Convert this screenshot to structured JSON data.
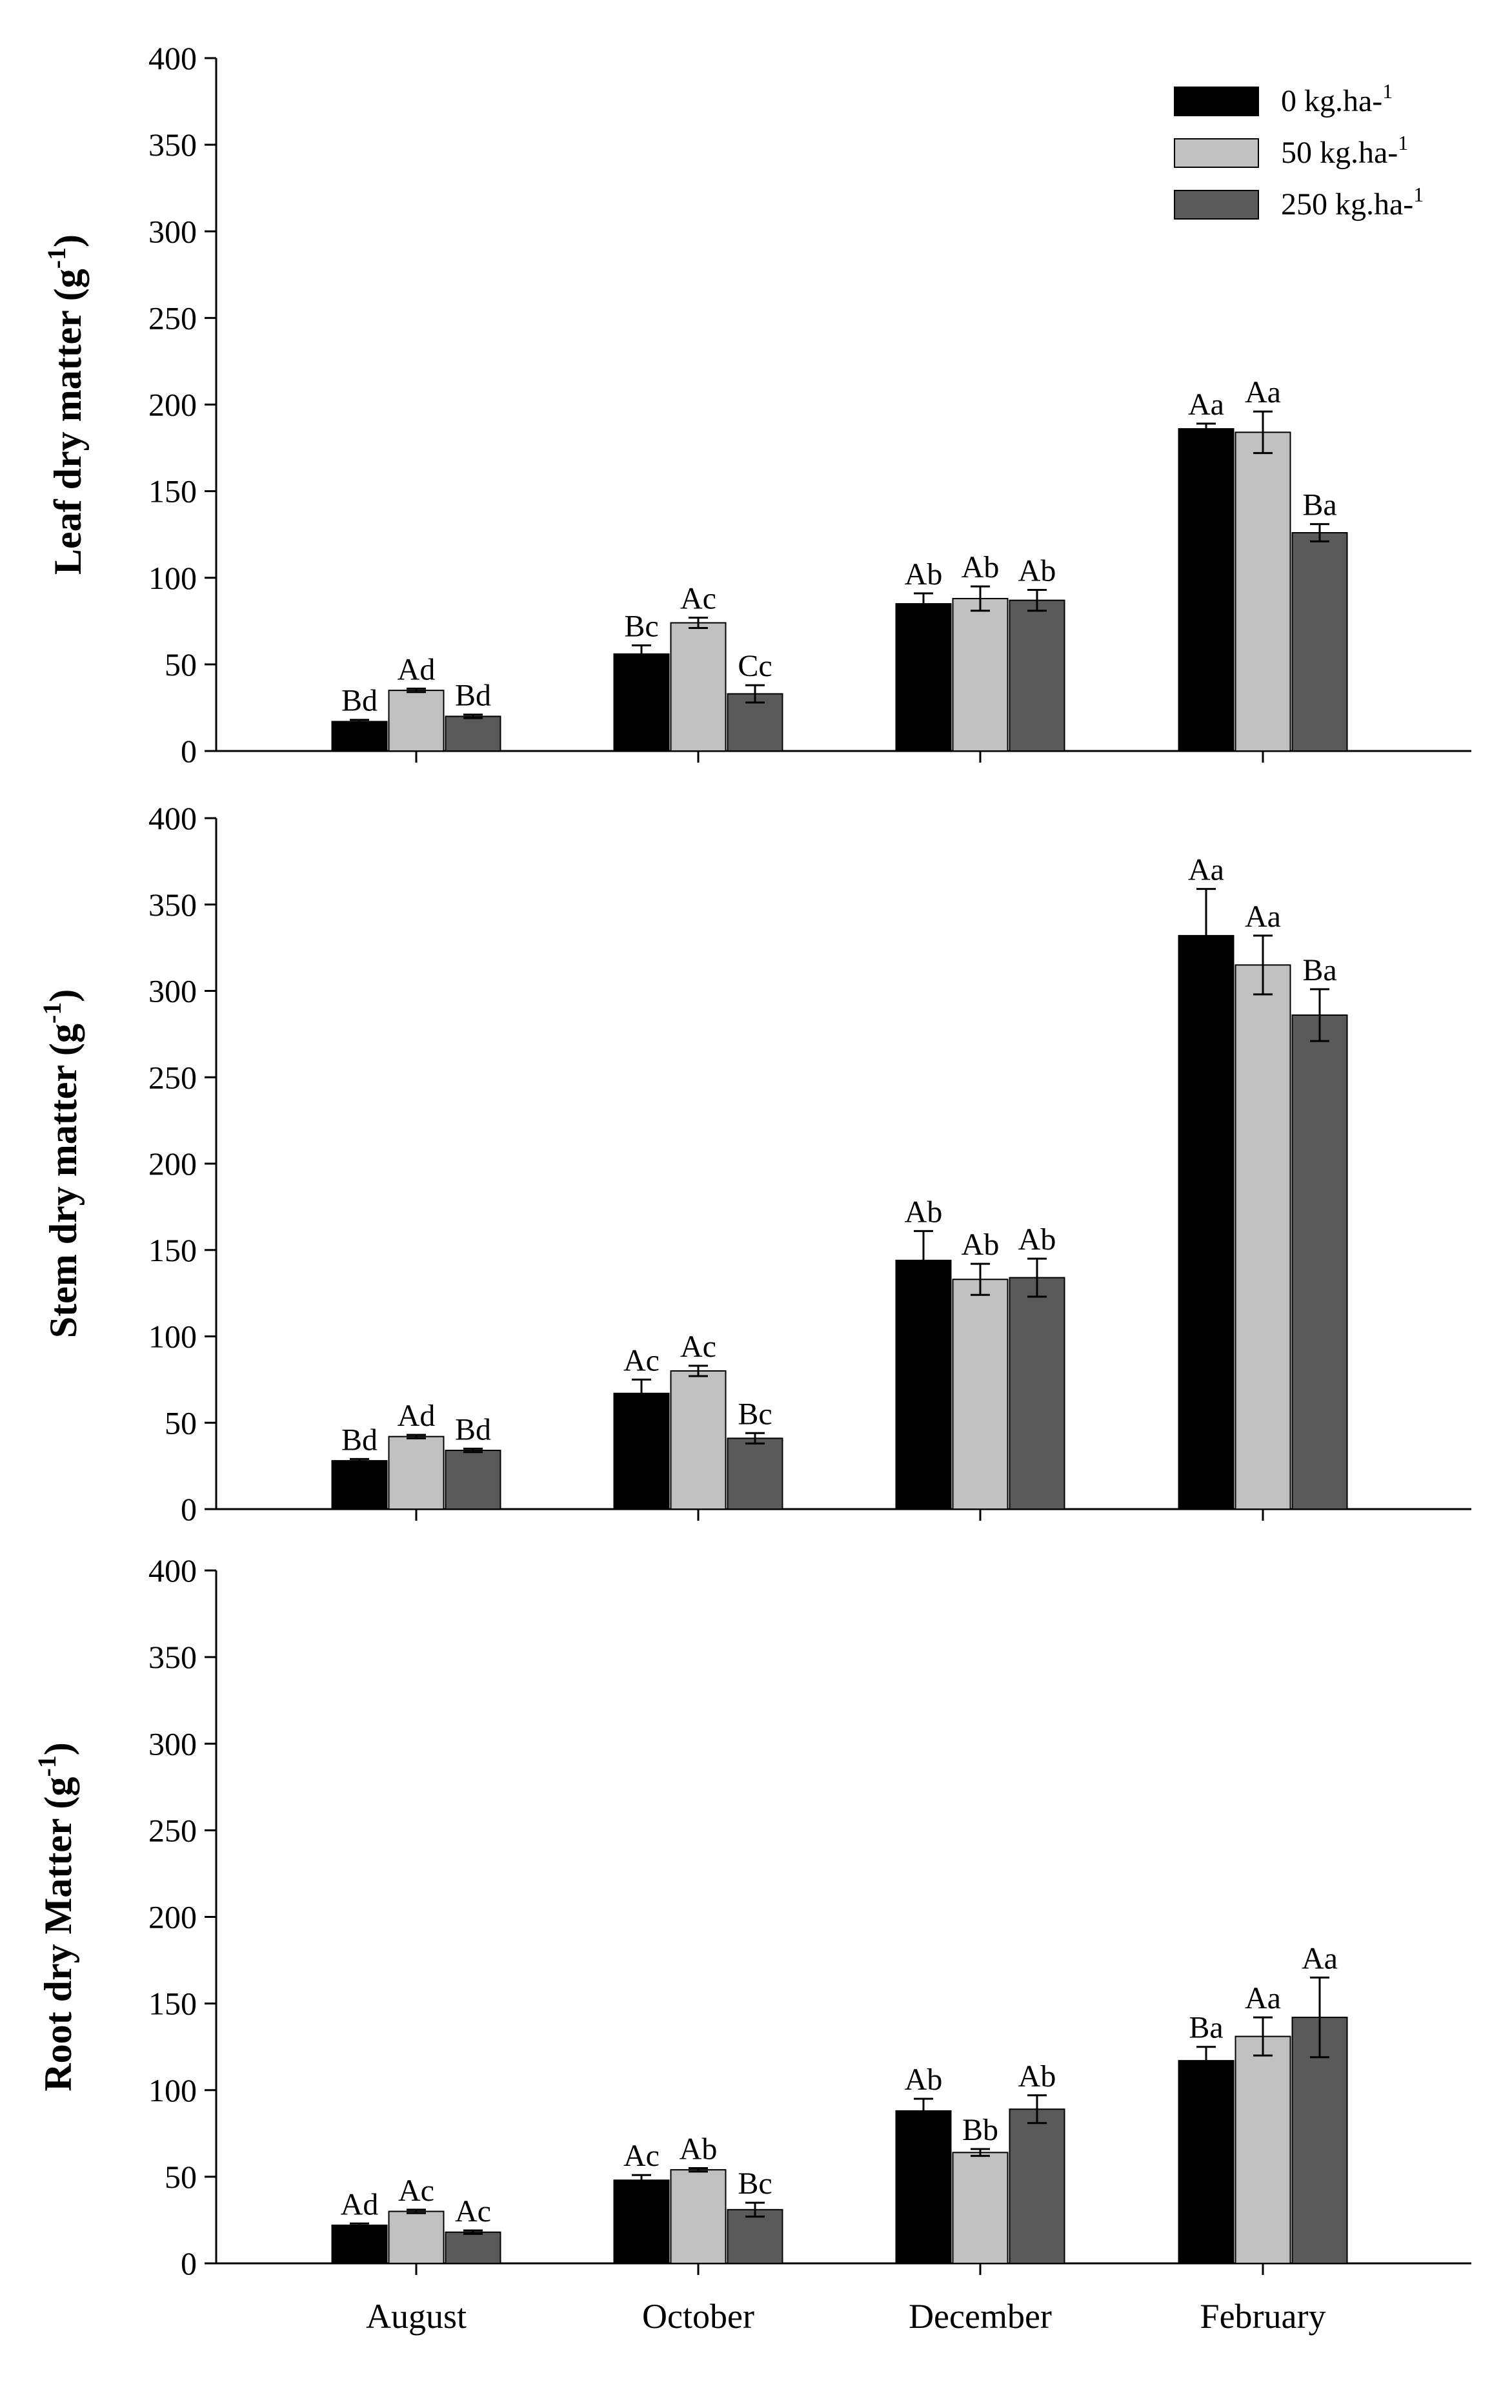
{
  "chart_data": [
    {
      "type": "bar",
      "ylabel": "Leaf dry matter (g-1)",
      "ylabel_main": "Leaf dry matter (g",
      "ylabel_sup": "-1",
      "ylabel_close": ")",
      "categories": [
        "August",
        "October",
        "December",
        "February"
      ],
      "ylim": [
        0,
        400
      ],
      "yticks": [
        0,
        50,
        100,
        150,
        200,
        250,
        300,
        350,
        400
      ],
      "legend_position": "top-right",
      "series": [
        {
          "name": "0 kg.ha-1",
          "values": [
            17,
            56,
            85,
            186
          ],
          "errors": [
            1,
            5,
            6,
            3
          ],
          "labels": [
            "Bd",
            "Bc",
            "Ab",
            "Aa"
          ]
        },
        {
          "name": "50 kg.ha-1",
          "values": [
            35,
            74,
            88,
            184
          ],
          "errors": [
            1,
            3,
            7,
            12
          ],
          "labels": [
            "Ad",
            "Ac",
            "Ab",
            "Aa"
          ]
        },
        {
          "name": "250 kg.ha-1",
          "values": [
            20,
            33,
            87,
            126
          ],
          "errors": [
            1,
            5,
            6,
            5
          ],
          "labels": [
            "Bd",
            "Cc",
            "Ab",
            "Ba"
          ]
        }
      ]
    },
    {
      "type": "bar",
      "ylabel": "Stem dry matter (g-1)",
      "ylabel_main": "Stem dry matter (g",
      "ylabel_sup": "-1",
      "ylabel_close": ")",
      "categories": [
        "August",
        "October",
        "December",
        "February"
      ],
      "ylim": [
        0,
        400
      ],
      "yticks": [
        0,
        50,
        100,
        150,
        200,
        250,
        300,
        350,
        400
      ],
      "series": [
        {
          "name": "0 kg.ha-1",
          "values": [
            28,
            67,
            144,
            332
          ],
          "errors": [
            1,
            8,
            17,
            27
          ],
          "labels": [
            "Bd",
            "Ac",
            "Ab",
            "Aa"
          ]
        },
        {
          "name": "50 kg.ha-1",
          "values": [
            42,
            80,
            133,
            315
          ],
          "errors": [
            1,
            3,
            9,
            17
          ],
          "labels": [
            "Ad",
            "Ac",
            "Ab",
            "Aa"
          ]
        },
        {
          "name": "250 kg.ha-1",
          "values": [
            34,
            41,
            134,
            286
          ],
          "errors": [
            1,
            3,
            11,
            15
          ],
          "labels": [
            "Bd",
            "Bc",
            "Ab",
            "Ba"
          ]
        }
      ]
    },
    {
      "type": "bar",
      "ylabel": "Root dry Matter (g-1)",
      "ylabel_main": "Root dry Matter (g",
      "ylabel_sup": "-1",
      "ylabel_close": ")",
      "categories": [
        "August",
        "October",
        "December",
        "February"
      ],
      "ylim": [
        0,
        400
      ],
      "yticks": [
        0,
        50,
        100,
        150,
        200,
        250,
        300,
        350,
        400
      ],
      "series": [
        {
          "name": "0 kg.ha-1",
          "values": [
            22,
            48,
            88,
            117
          ],
          "errors": [
            1,
            3,
            7,
            8
          ],
          "labels": [
            "Ad",
            "Ac",
            "Ab",
            "Ba"
          ]
        },
        {
          "name": "50 kg.ha-1",
          "values": [
            30,
            54,
            64,
            131
          ],
          "errors": [
            1,
            1,
            2,
            11
          ],
          "labels": [
            "Ac",
            "Ab",
            "Bb",
            "Aa"
          ]
        },
        {
          "name": "250 kg.ha-1",
          "values": [
            18,
            31,
            89,
            142
          ],
          "errors": [
            1,
            4,
            8,
            23
          ],
          "labels": [
            "Ac",
            "Bc",
            "Ab",
            "Aa"
          ]
        }
      ]
    }
  ],
  "legend": {
    "items": [
      {
        "label": "0 kg.ha-",
        "sup": "1",
        "color": "#000000"
      },
      {
        "label": "50 kg.ha-",
        "sup": "1",
        "color": "#c0c0c0"
      },
      {
        "label": "250 kg.ha-",
        "sup": "1",
        "color": "#5a5a5a"
      }
    ]
  },
  "series_colors": [
    "#000000",
    "#c0c0c0",
    "#5a5a5a"
  ]
}
